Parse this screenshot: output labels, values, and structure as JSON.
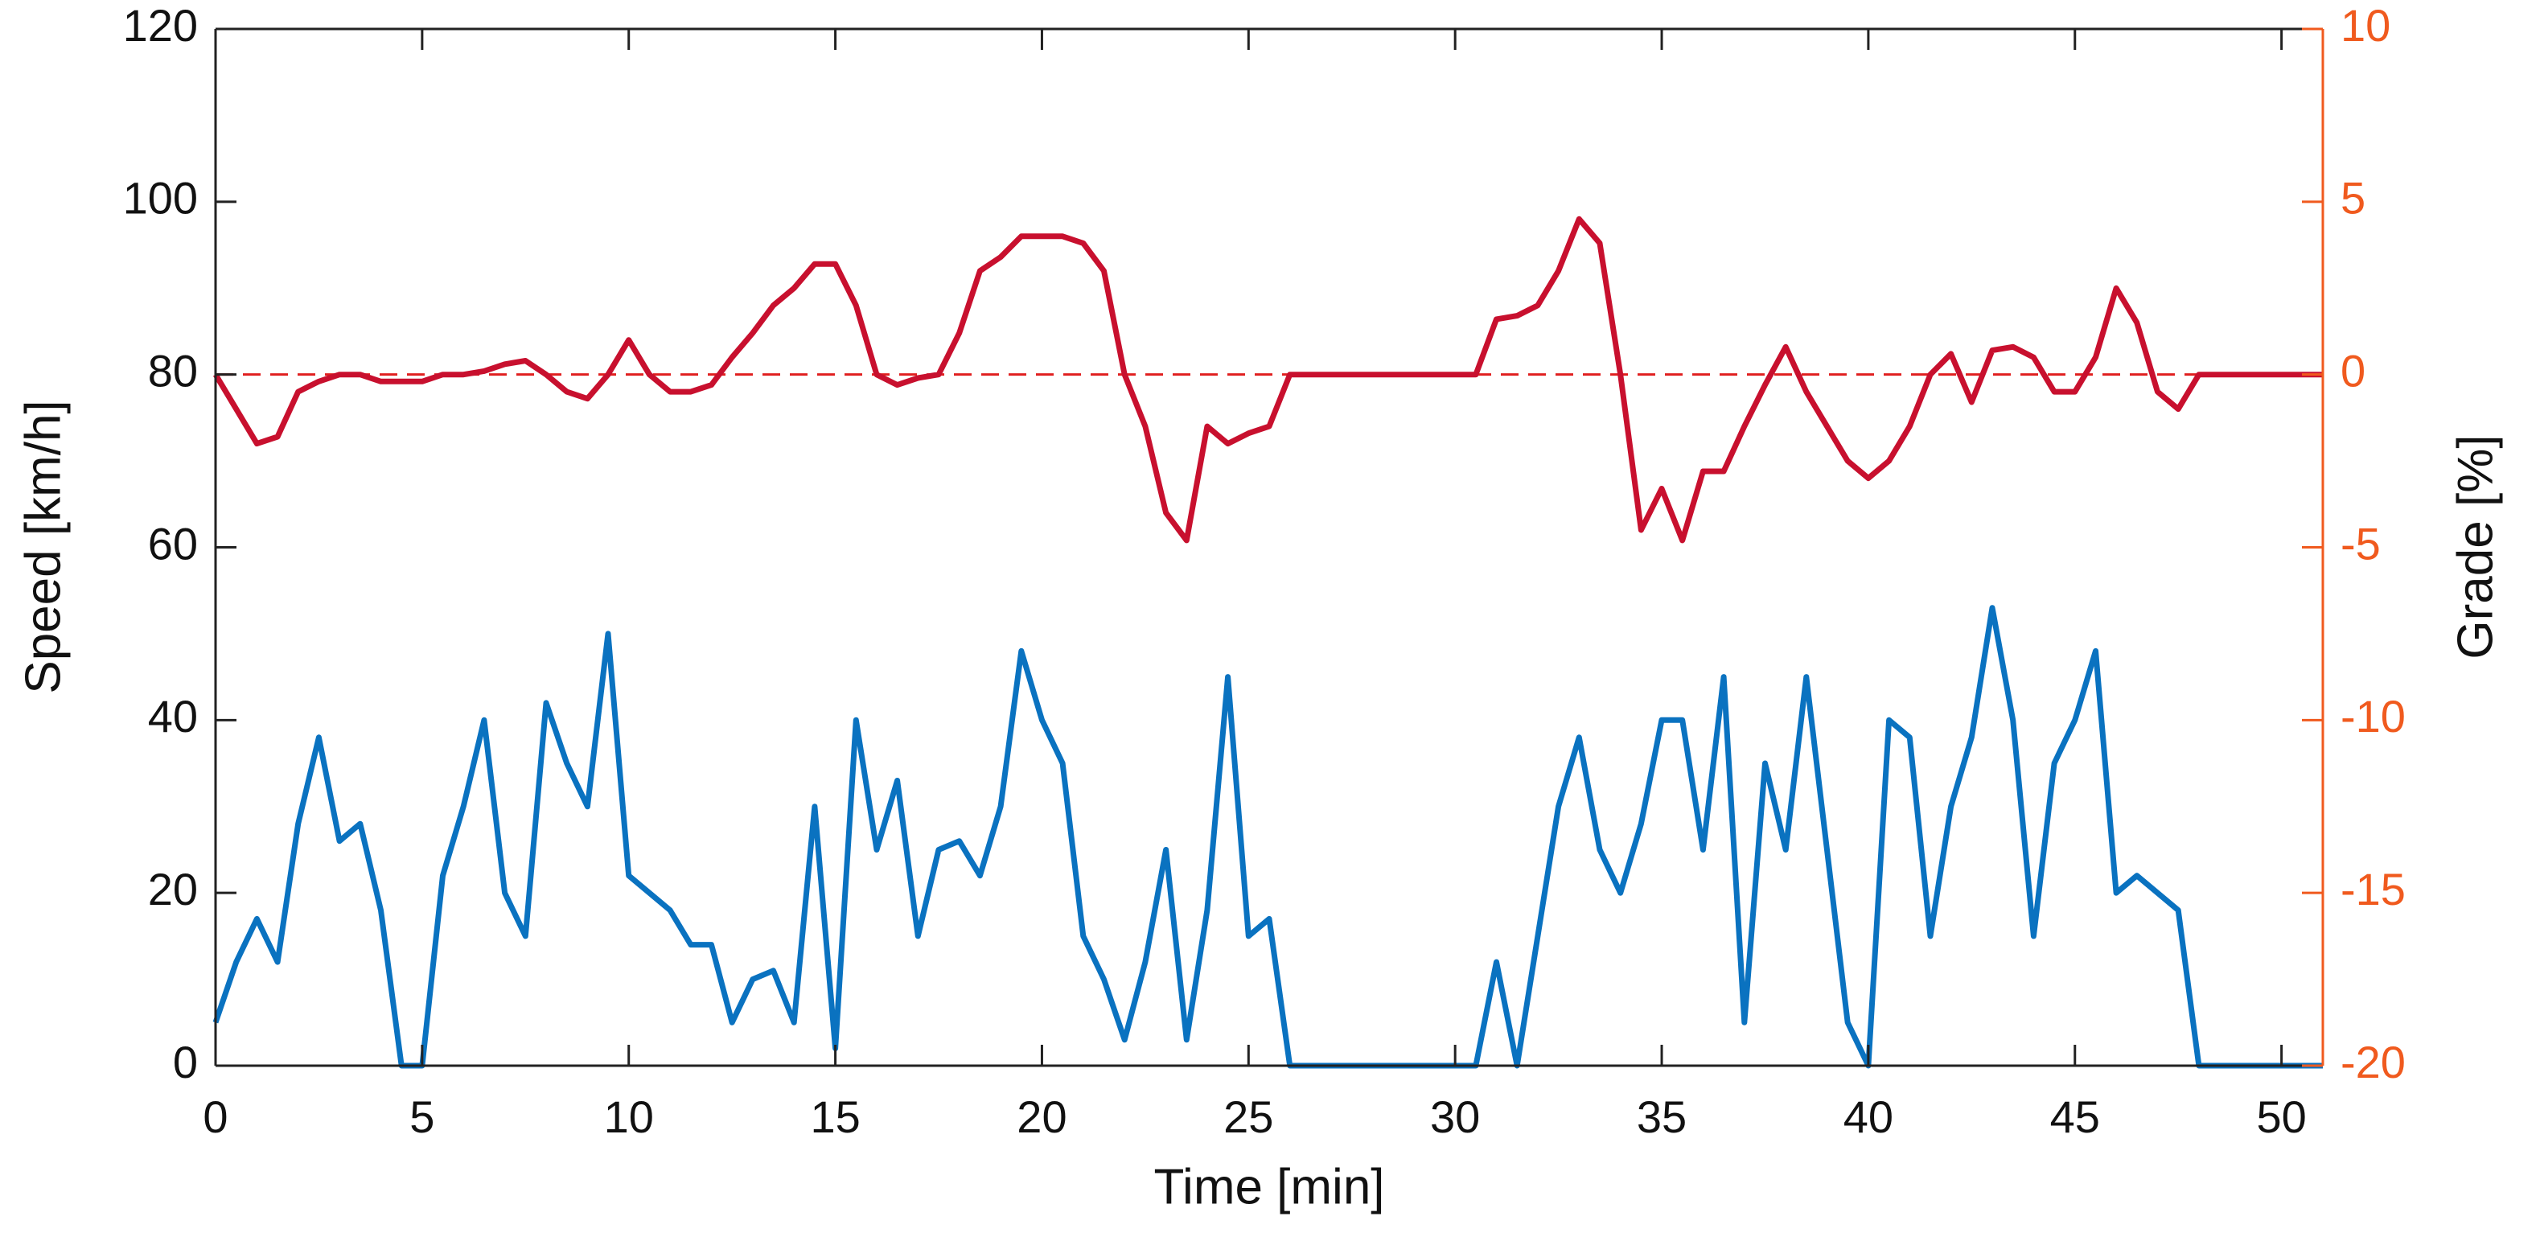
{
  "chart_data": {
    "type": "line",
    "x_label": "Time [min]",
    "y_label": "Speed [km/h]",
    "y2_label": "Grade [%]",
    "x": [
      0,
      0.5,
      1,
      1.5,
      2,
      2.5,
      3,
      3.5,
      4,
      4.5,
      5,
      5.5,
      6,
      6.5,
      7,
      7.5,
      8,
      8.5,
      9,
      9.5,
      10,
      10.5,
      11,
      11.5,
      12,
      12.5,
      13,
      13.5,
      14,
      14.5,
      15,
      15.5,
      16,
      16.5,
      17,
      17.5,
      18,
      18.5,
      19,
      19.5,
      20,
      20.5,
      21,
      21.5,
      22,
      22.5,
      23,
      23.5,
      24,
      24.5,
      25,
      25.5,
      26,
      26.5,
      27,
      27.5,
      28,
      28.5,
      29,
      29.5,
      30,
      30.5,
      31,
      31.5,
      32,
      32.5,
      33,
      33.5,
      34,
      34.5,
      35,
      35.5,
      36,
      36.5,
      37,
      37.5,
      38,
      38.5,
      39,
      39.5,
      40,
      40.5,
      41,
      41.5,
      42,
      42.5,
      43,
      43.5,
      44,
      44.5,
      45,
      45.5,
      46,
      46.5,
      47,
      47.5,
      48,
      48.5,
      49,
      49.5,
      50,
      50.5,
      51
    ],
    "series": [
      {
        "name": "Speed",
        "color": "#0a72c0",
        "values": [
          5,
          12,
          17,
          12,
          28,
          38,
          26,
          28,
          18,
          0,
          0,
          22,
          30,
          40,
          20,
          15,
          42,
          35,
          30,
          50,
          22,
          20,
          18,
          14,
          14,
          5,
          10,
          11,
          5,
          30,
          2,
          40,
          25,
          33,
          15,
          25,
          26,
          22,
          30,
          48,
          40,
          35,
          15,
          10,
          3,
          12,
          25,
          3,
          18,
          45,
          15,
          17,
          0,
          0,
          0,
          0,
          0,
          0,
          0,
          0,
          0,
          0,
          12,
          0,
          15,
          30,
          38,
          25,
          20,
          28,
          40,
          40,
          25,
          45,
          5,
          35,
          25,
          45,
          25,
          5,
          0,
          40,
          38,
          15,
          30,
          38,
          53,
          40,
          15,
          35,
          40,
          48,
          20,
          22,
          20,
          18,
          0,
          0,
          0,
          0,
          0,
          0,
          0
        ]
      },
      {
        "name": "Grade",
        "color": "#c8102e",
        "axis": "y2",
        "values": [
          0,
          -1,
          -2,
          -1.8,
          -0.5,
          -0.2,
          0,
          0,
          -0.2,
          -0.2,
          -0.2,
          0,
          0,
          0.1,
          0.3,
          0.4,
          0,
          -0.5,
          -0.7,
          0,
          1,
          0,
          -0.5,
          -0.5,
          -0.3,
          0.5,
          1.2,
          2,
          2.5,
          3.2,
          3.2,
          2,
          0,
          -0.3,
          -0.1,
          0,
          1.2,
          3,
          3.4,
          4,
          4,
          4,
          3.8,
          3,
          0,
          -1.5,
          -4,
          -4.8,
          -1.5,
          -2,
          -1.7,
          -1.5,
          0,
          0,
          0,
          0,
          0,
          0,
          0,
          0,
          0,
          0,
          1.6,
          1.7,
          2,
          3,
          4.5,
          3.8,
          0,
          -4.5,
          -3.3,
          -4.8,
          -2.8,
          -2.8,
          -1.5,
          -0.3,
          0.8,
          -0.5,
          -1.5,
          -2.5,
          -3,
          -2.5,
          -1.5,
          0,
          0.6,
          -0.8,
          0.7,
          0.8,
          0.5,
          -0.5,
          -0.5,
          0.5,
          2.5,
          1.5,
          -0.5,
          -1,
          0,
          0,
          0,
          0,
          0,
          0,
          0
        ]
      }
    ],
    "reference_lines": [
      {
        "axis": "y2",
        "value": 0,
        "color": "#e02020",
        "style": "dashed"
      }
    ],
    "xlim": [
      0,
      51
    ],
    "xticks": [
      0,
      5,
      10,
      15,
      20,
      25,
      30,
      35,
      40,
      45,
      50
    ],
    "ylim": [
      0,
      120
    ],
    "yticks": [
      0,
      20,
      40,
      60,
      80,
      100,
      120
    ],
    "y2lim": [
      -20,
      10
    ],
    "y2ticks": [
      -20,
      -15,
      -10,
      -5,
      0,
      5,
      10
    ],
    "y2_color": "#f05a1e"
  }
}
